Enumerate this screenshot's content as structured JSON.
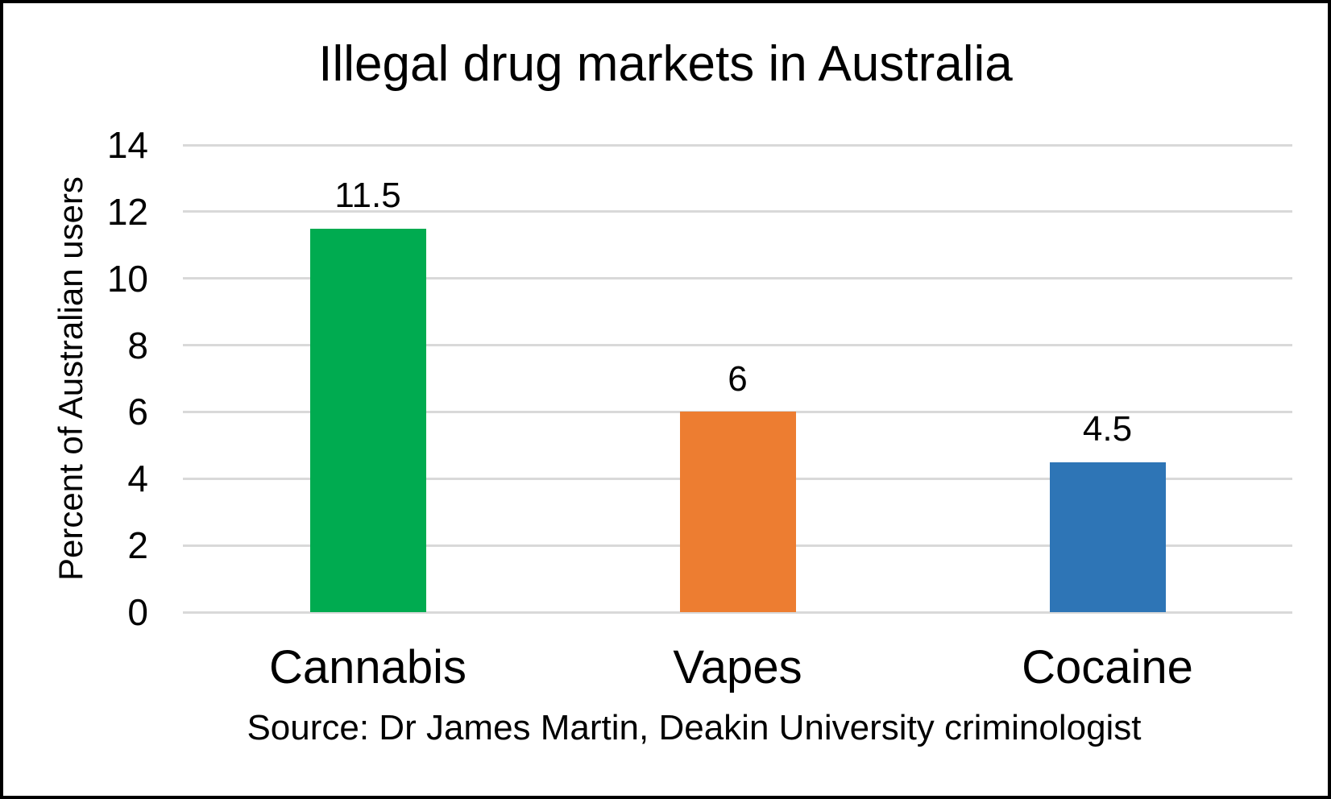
{
  "chart_data": {
    "type": "bar",
    "title": "Illegal drug markets in Australia",
    "xlabel": "",
    "ylabel": "Percent of Australian users",
    "source": "Source: Dr James Martin, Deakin University criminologist",
    "categories": [
      "Cannabis",
      "Vapes",
      "Cocaine"
    ],
    "values": [
      11.5,
      6,
      4.5
    ],
    "value_labels": [
      "11.5",
      "6",
      "4.5"
    ],
    "bar_colors": [
      "#00AB50",
      "#ED7D31",
      "#2E75B6"
    ],
    "ylim": [
      0,
      14
    ],
    "yticks": [
      0,
      2,
      4,
      6,
      8,
      10,
      12,
      14
    ],
    "grid": "horizontal",
    "gridline_color": "#D9D9D9",
    "legend": "none",
    "background_color": "#FFFFFF",
    "frame_border_color": "#000000",
    "text_color": "#000000"
  }
}
